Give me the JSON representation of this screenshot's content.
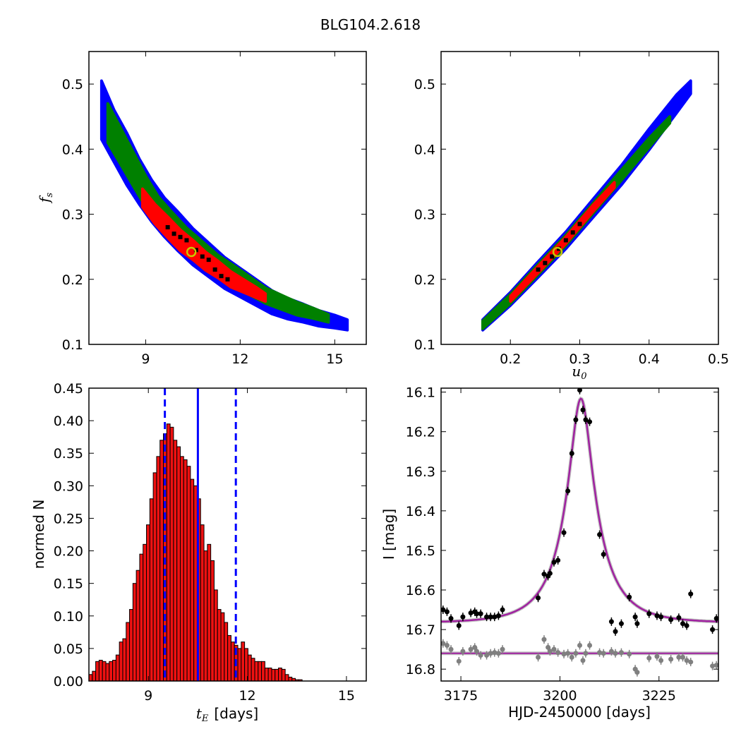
{
  "figure": {
    "title": "BLG104.2.618"
  },
  "colors": {
    "level1": "#0000ff",
    "level2": "#008000",
    "level3": "#ff0000",
    "samples": "#000000",
    "best_fit_marker": "#c8c800",
    "hist_bar": "#ee1111",
    "hist_edge": "#000000",
    "median_line": "#0000ff",
    "model_curve": "#a020a0",
    "data_black": "#000000",
    "data_gray": "#808080"
  },
  "chart_data": [
    {
      "id": "ts-fs",
      "type": "heatmap",
      "title": "",
      "xlabel": "",
      "ylabel": "f_s",
      "ylabel_main": "f",
      "ylabel_sub": "s",
      "xlim": [
        7.2,
        16.0
      ],
      "ylim": [
        0.1,
        0.55
      ],
      "xticks": [
        "9",
        "12",
        "15"
      ],
      "xtick_values": [
        9,
        12,
        15
      ],
      "yticks": [
        "0.1",
        "0.2",
        "0.3",
        "0.4",
        "0.5"
      ],
      "ytick_values": [
        0.1,
        0.2,
        0.3,
        0.4,
        0.5
      ],
      "description_of_regions": "confidence contours: blue outermost, green middle, red inner, black densest",
      "bands": [
        {
          "level": "level1",
          "x": [
            7.6,
            8.0,
            8.4,
            8.8,
            9.2,
            9.6,
            10.0,
            10.5,
            11.0,
            11.5,
            12.0,
            12.5,
            13.0,
            13.5,
            14.0,
            14.5,
            15.0,
            15.4
          ],
          "y": [
            0.46,
            0.42,
            0.385,
            0.35,
            0.32,
            0.295,
            0.275,
            0.25,
            0.23,
            0.21,
            0.195,
            0.18,
            0.165,
            0.155,
            0.148,
            0.14,
            0.135,
            0.13
          ],
          "half_width": [
            0.045,
            0.04,
            0.04,
            0.035,
            0.032,
            0.03,
            0.03,
            0.028,
            0.026,
            0.024,
            0.022,
            0.02,
            0.018,
            0.016,
            0.014,
            0.012,
            0.01,
            0.008
          ]
        },
        {
          "level": "level2",
          "x": [
            7.8,
            8.2,
            8.6,
            9.0,
            9.4,
            9.8,
            10.3,
            10.8,
            11.3,
            11.8,
            12.3,
            12.8,
            13.3,
            13.8,
            14.3,
            14.8
          ],
          "y": [
            0.44,
            0.405,
            0.37,
            0.335,
            0.305,
            0.285,
            0.26,
            0.24,
            0.22,
            0.205,
            0.19,
            0.175,
            0.165,
            0.155,
            0.148,
            0.14
          ],
          "half_width": [
            0.03,
            0.028,
            0.026,
            0.024,
            0.022,
            0.02,
            0.019,
            0.018,
            0.017,
            0.016,
            0.014,
            0.012,
            0.011,
            0.01,
            0.008,
            0.006
          ]
        },
        {
          "level": "level3",
          "x": [
            8.9,
            9.3,
            9.7,
            10.1,
            10.5,
            10.9,
            11.3,
            11.7,
            12.1,
            12.5,
            12.8
          ],
          "y": [
            0.325,
            0.3,
            0.28,
            0.26,
            0.245,
            0.228,
            0.215,
            0.2,
            0.19,
            0.18,
            0.172
          ],
          "half_width": [
            0.014,
            0.015,
            0.016,
            0.016,
            0.015,
            0.014,
            0.013,
            0.012,
            0.01,
            0.008,
            0.006
          ]
        }
      ],
      "samples": {
        "x": [
          9.7,
          9.9,
          10.1,
          10.3,
          10.6,
          10.8,
          11.0,
          11.2,
          11.4,
          11.6
        ],
        "y": [
          0.28,
          0.27,
          0.265,
          0.26,
          0.245,
          0.235,
          0.23,
          0.215,
          0.205,
          0.2
        ]
      },
      "best_fit": {
        "x": 10.45,
        "y": 0.242
      }
    },
    {
      "id": "u0-fs",
      "type": "heatmap",
      "title": "",
      "xlabel": "u_0",
      "xlabel_main": "u",
      "xlabel_sub": "0",
      "ylabel": "",
      "xlim": [
        0.1,
        0.5
      ],
      "ylim": [
        0.1,
        0.55
      ],
      "xticks": [
        "0.2",
        "0.3",
        "0.4",
        "0.5"
      ],
      "xtick_values": [
        0.2,
        0.3,
        0.4,
        0.5
      ],
      "yticks": [
        "0.1",
        "0.2",
        "0.3",
        "0.4",
        "0.5"
      ],
      "ytick_values": [
        0.1,
        0.2,
        0.3,
        0.4,
        0.5
      ],
      "bands": [
        {
          "level": "level1",
          "x": [
            0.16,
            0.2,
            0.24,
            0.28,
            0.32,
            0.36,
            0.4,
            0.44,
            0.46
          ],
          "y": [
            0.13,
            0.17,
            0.215,
            0.26,
            0.31,
            0.36,
            0.415,
            0.47,
            0.495
          ],
          "half_width": [
            0.008,
            0.01,
            0.012,
            0.013,
            0.014,
            0.015,
            0.016,
            0.014,
            0.01
          ]
        },
        {
          "level": "level2",
          "x": [
            0.16,
            0.2,
            0.24,
            0.28,
            0.32,
            0.36,
            0.4,
            0.43
          ],
          "y": [
            0.13,
            0.17,
            0.215,
            0.26,
            0.31,
            0.36,
            0.41,
            0.445
          ],
          "half_width": [
            0.006,
            0.007,
            0.008,
            0.008,
            0.008,
            0.008,
            0.007,
            0.005
          ]
        },
        {
          "level": "level3",
          "x": [
            0.2,
            0.24,
            0.28,
            0.32,
            0.35
          ],
          "y": [
            0.17,
            0.215,
            0.26,
            0.31,
            0.345
          ],
          "half_width": [
            0.004,
            0.005,
            0.005,
            0.005,
            0.004
          ]
        }
      ],
      "samples": {
        "x": [
          0.24,
          0.25,
          0.26,
          0.27,
          0.28,
          0.29,
          0.3
        ],
        "y": [
          0.215,
          0.225,
          0.235,
          0.247,
          0.26,
          0.272,
          0.285
        ]
      },
      "best_fit": {
        "x": 0.268,
        "y": 0.242
      }
    },
    {
      "id": "te-hist",
      "type": "bar",
      "title": "",
      "xlabel_main": "t",
      "xlabel_sub": "E",
      "xlabel_rest": "[days]",
      "ylabel": "normed N",
      "xlim": [
        7.2,
        15.6
      ],
      "ylim": [
        0.0,
        0.45
      ],
      "xticks": [
        "9",
        "12",
        "15"
      ],
      "xtick_values": [
        9,
        12,
        15
      ],
      "yticks": [
        "0.00",
        "0.05",
        "0.10",
        "0.15",
        "0.20",
        "0.25",
        "0.30",
        "0.35",
        "0.40",
        "0.45"
      ],
      "ytick_values": [
        0.0,
        0.05,
        0.1,
        0.15,
        0.2,
        0.25,
        0.3,
        0.35,
        0.4,
        0.45
      ],
      "bin_start": 7.2,
      "bin_width": 0.1025,
      "values": [
        0.01,
        0.015,
        0.03,
        0.032,
        0.03,
        0.027,
        0.03,
        0.032,
        0.04,
        0.06,
        0.065,
        0.09,
        0.11,
        0.15,
        0.17,
        0.195,
        0.21,
        0.24,
        0.28,
        0.32,
        0.345,
        0.37,
        0.38,
        0.395,
        0.39,
        0.37,
        0.36,
        0.345,
        0.34,
        0.33,
        0.31,
        0.3,
        0.28,
        0.24,
        0.2,
        0.21,
        0.185,
        0.14,
        0.11,
        0.105,
        0.09,
        0.07,
        0.06,
        0.055,
        0.05,
        0.06,
        0.05,
        0.04,
        0.035,
        0.03,
        0.03,
        0.03,
        0.02,
        0.02,
        0.018,
        0.018,
        0.02,
        0.018,
        0.01,
        0.006,
        0.004,
        0.002,
        0.002
      ],
      "vlines": {
        "median": 10.5,
        "lower": 9.5,
        "upper": 11.65
      }
    },
    {
      "id": "lightcurve",
      "type": "scatter",
      "title": "",
      "xlabel": "HJD-2450000 [days]",
      "ylabel": "I [mag]",
      "xlim": [
        3170,
        3240
      ],
      "ylim": [
        16.83,
        16.09
      ],
      "xticks": [
        "3175",
        "3200",
        "3225"
      ],
      "xtick_values": [
        3175,
        3200,
        3225
      ],
      "yticks": [
        "16.1",
        "16.2",
        "16.3",
        "16.4",
        "16.5",
        "16.6",
        "16.7",
        "16.8"
      ],
      "ytick_values": [
        16.1,
        16.2,
        16.3,
        16.4,
        16.5,
        16.6,
        16.7,
        16.8
      ],
      "model": {
        "t0": 3205.3,
        "tE": 10.5,
        "u0": 0.268,
        "fs": 0.242,
        "baseline": 16.683
      },
      "residual_baseline": 16.76,
      "series": [
        {
          "name": "",
          "color_key": "data_black",
          "x": [
            3170.5,
            3171.5,
            3172.5,
            3174.5,
            3175.5,
            3177.5,
            3178.5,
            3179,
            3180,
            3181.5,
            3182.5,
            3183.5,
            3184.5,
            3185.5,
            3194.5,
            3196,
            3197,
            3197.5,
            3198.5,
            3199.5,
            3201,
            3202,
            3203,
            3204,
            3205,
            3205.8,
            3206.5,
            3207.5,
            3210,
            3211,
            3213,
            3214,
            3215.5,
            3217.5,
            3219,
            3219.5,
            3222.5,
            3224.5,
            3225.5,
            3228,
            3230,
            3231,
            3232,
            3233,
            3238.5,
            3239.5
          ],
          "y": [
            16.65,
            16.655,
            16.672,
            16.69,
            16.668,
            16.658,
            16.655,
            16.66,
            16.66,
            16.668,
            16.668,
            16.668,
            16.665,
            16.65,
            16.62,
            16.56,
            16.565,
            16.558,
            16.53,
            16.525,
            16.455,
            16.35,
            16.255,
            16.17,
            16.095,
            16.145,
            16.17,
            16.175,
            16.46,
            16.51,
            16.68,
            16.705,
            16.685,
            16.618,
            16.668,
            16.685,
            16.66,
            16.665,
            16.668,
            16.675,
            16.67,
            16.685,
            16.69,
            16.61,
            16.7,
            16.672
          ]
        },
        {
          "name": "",
          "color_key": "data_gray",
          "x": [
            3170.5,
            3171.5,
            3172.5,
            3174.5,
            3175.5,
            3177.5,
            3178.5,
            3179,
            3180,
            3181.5,
            3182.5,
            3183.5,
            3184.5,
            3185.5,
            3194.5,
            3196,
            3197,
            3197.5,
            3198.5,
            3199.5,
            3201,
            3202,
            3203,
            3204,
            3205,
            3205.8,
            3206.5,
            3207.5,
            3210,
            3211,
            3213,
            3214,
            3215.5,
            3217.5,
            3219,
            3219.5,
            3222.5,
            3224.5,
            3225.5,
            3228,
            3230,
            3231,
            3232,
            3233,
            3238.5,
            3239.5
          ],
          "y": [
            16.735,
            16.74,
            16.75,
            16.78,
            16.755,
            16.75,
            16.745,
            16.755,
            16.765,
            16.765,
            16.76,
            16.758,
            16.76,
            16.75,
            16.77,
            16.725,
            16.745,
            16.755,
            16.75,
            16.758,
            16.762,
            16.76,
            16.77,
            16.76,
            16.74,
            16.778,
            16.76,
            16.74,
            16.758,
            16.76,
            16.755,
            16.76,
            16.758,
            16.762,
            16.8,
            16.808,
            16.772,
            16.768,
            16.778,
            16.775,
            16.77,
            16.77,
            16.778,
            16.782,
            16.792,
            16.79
          ]
        }
      ]
    }
  ]
}
